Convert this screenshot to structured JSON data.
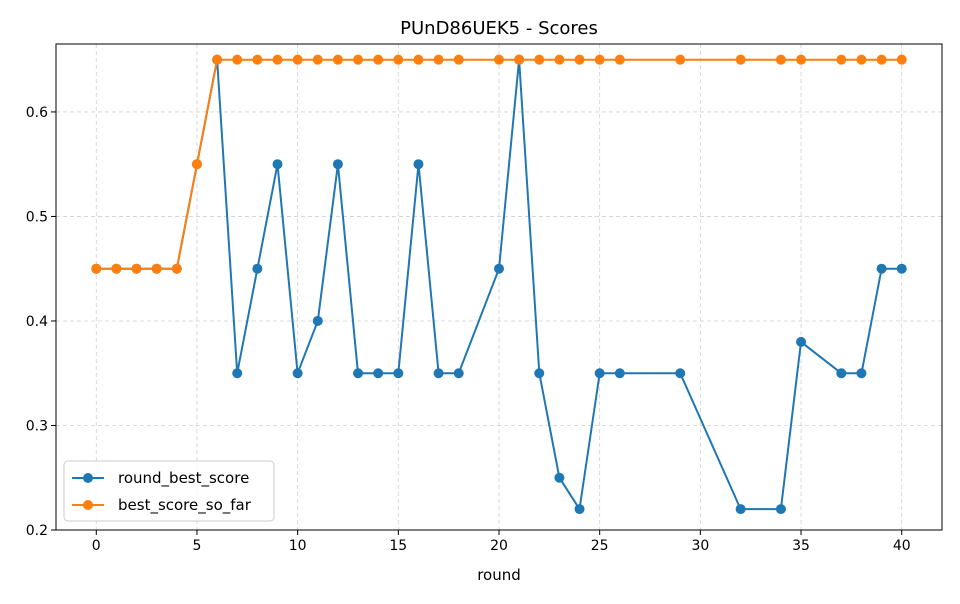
{
  "chart_data": {
    "type": "line",
    "title": "PUnD86UEK5 - Scores",
    "xlabel": "round",
    "ylabel": "",
    "xlim": [
      -2,
      42
    ],
    "ylim": [
      0.2,
      0.665
    ],
    "xticks": [
      0,
      5,
      10,
      15,
      20,
      25,
      30,
      35,
      40
    ],
    "yticks": [
      0.2,
      0.3,
      0.4,
      0.5,
      0.6
    ],
    "ytick_labels": [
      "0.2",
      "0.3",
      "0.4",
      "0.5",
      "0.6"
    ],
    "grid": true,
    "legend_position": "lower-left",
    "series": [
      {
        "name": "round_best_score",
        "color": "#1f77b4",
        "x": [
          0,
          1,
          2,
          3,
          4,
          5,
          6,
          7,
          8,
          9,
          10,
          11,
          12,
          13,
          14,
          15,
          16,
          17,
          18,
          20,
          21,
          22,
          23,
          24,
          25,
          26,
          29,
          32,
          34,
          35,
          37,
          38,
          39,
          40
        ],
        "values": [
          0.45,
          0.45,
          0.45,
          0.45,
          0.45,
          0.55,
          0.65,
          0.35,
          0.45,
          0.55,
          0.35,
          0.4,
          0.55,
          0.35,
          0.35,
          0.35,
          0.55,
          0.35,
          0.35,
          0.45,
          0.65,
          0.35,
          0.25,
          0.22,
          0.35,
          0.35,
          0.35,
          0.22,
          0.22,
          0.38,
          0.35,
          0.35,
          0.45,
          0.45
        ]
      },
      {
        "name": "best_score_so_far",
        "color": "#ff7f0e",
        "x": [
          0,
          1,
          2,
          3,
          4,
          5,
          6,
          7,
          8,
          9,
          10,
          11,
          12,
          13,
          14,
          15,
          16,
          17,
          18,
          20,
          21,
          22,
          23,
          24,
          25,
          26,
          29,
          32,
          34,
          35,
          37,
          38,
          39,
          40
        ],
        "values": [
          0.45,
          0.45,
          0.45,
          0.45,
          0.45,
          0.55,
          0.65,
          0.65,
          0.65,
          0.65,
          0.65,
          0.65,
          0.65,
          0.65,
          0.65,
          0.65,
          0.65,
          0.65,
          0.65,
          0.65,
          0.65,
          0.65,
          0.65,
          0.65,
          0.65,
          0.65,
          0.65,
          0.65,
          0.65,
          0.65,
          0.65,
          0.65,
          0.65,
          0.65
        ]
      }
    ]
  }
}
